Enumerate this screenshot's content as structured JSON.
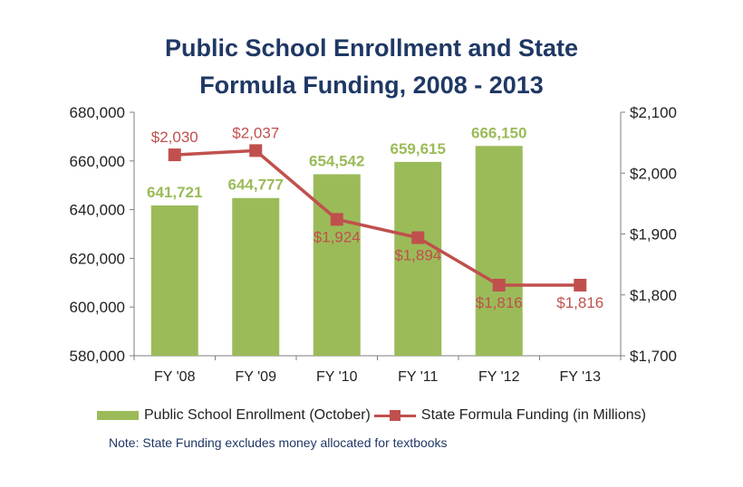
{
  "chart_data": {
    "type": "bar+line",
    "title_lines": [
      "Public School Enrollment and State",
      "Formula Funding, 2008 - 2013"
    ],
    "categories": [
      "FY '08",
      "FY '09",
      "FY '10",
      "FY '11",
      "FY '12",
      "FY '13"
    ],
    "series": [
      {
        "name": "Public School Enrollment (October)",
        "type": "bar",
        "axis": "left",
        "color": "#9bbb59",
        "values": [
          641721,
          644777,
          654542,
          659615,
          666150,
          null
        ],
        "labels": [
          "641,721",
          "644,777",
          "654,542",
          "659,615",
          "666,150",
          ""
        ]
      },
      {
        "name": "State Formula Funding (in Millions)",
        "type": "line",
        "axis": "right",
        "color": "#c0504d",
        "values": [
          2030,
          2037,
          1924,
          1894,
          1816,
          1816
        ],
        "labels": [
          "$2,030",
          "$2,037",
          "$1,924",
          "$1,894",
          "$1,816",
          "$1,816"
        ]
      }
    ],
    "y_left": {
      "min": 580000,
      "max": 680000,
      "ticks": [
        580000,
        600000,
        620000,
        640000,
        660000,
        680000
      ],
      "tick_labels": [
        "580,000",
        "600,000",
        "620,000",
        "640,000",
        "660,000",
        "680,000"
      ]
    },
    "y_right": {
      "min": 1700,
      "max": 2100,
      "ticks": [
        1700,
        1800,
        1900,
        2000,
        2100
      ],
      "tick_labels": [
        "$1,700",
        "$1,800",
        "$1,900",
        "$2,000",
        "$2,100"
      ]
    },
    "legend_position": "bottom",
    "note": "Note: State Funding excludes money allocated for textbooks",
    "grid": false
  },
  "colors": {
    "title": "#1f3864",
    "bar": "#9bbb59",
    "line": "#c0504d",
    "axis": "#7f7f7f",
    "tick_text": "#222222",
    "note": "#1f3864"
  }
}
